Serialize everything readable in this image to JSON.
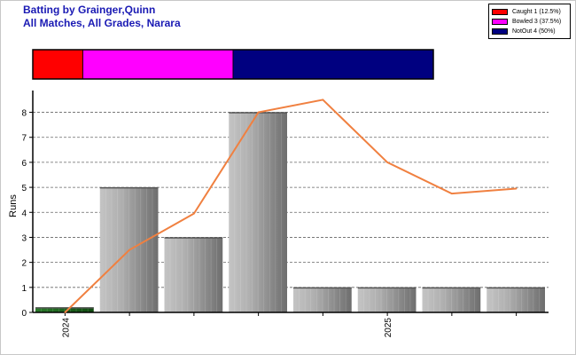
{
  "title": {
    "line1": "Batting by Grainger,Quinn",
    "line2": "All Matches, All Grades, Narara"
  },
  "legend": [
    {
      "label": "Caught 1 (12.5%)",
      "color": "#ff0000"
    },
    {
      "label": "Bowled 3 (37.5%)",
      "color": "#ff00ff"
    },
    {
      "label": "NotOut 4 (50%)",
      "color": "#000080"
    }
  ],
  "chart_data": [
    {
      "type": "bar",
      "name": "dismissal-proportion",
      "segments": [
        {
          "label": "Caught",
          "count": 1,
          "share": 0.125,
          "color": "#ff0000"
        },
        {
          "label": "Bowled",
          "count": 3,
          "share": 0.375,
          "color": "#ff00ff"
        },
        {
          "label": "NotOut",
          "count": 4,
          "share": 0.5,
          "color": "#000080"
        }
      ]
    },
    {
      "type": "bar",
      "ylabel": "Runs",
      "ylim": [
        0,
        8.8
      ],
      "yticks": [
        0,
        1,
        2,
        3,
        4,
        5,
        6,
        7,
        8
      ],
      "grid": true,
      "x_tick_labels": [
        {
          "index": 0,
          "label": "2024"
        },
        {
          "index": 5,
          "label": "2025"
        }
      ],
      "bars": [
        {
          "value": 0.2,
          "color": "#1e6a1e"
        },
        {
          "value": 5,
          "color": "#a8a8a8"
        },
        {
          "value": 3,
          "color": "#a8a8a8"
        },
        {
          "value": 8,
          "color": "#a8a8a8"
        },
        {
          "value": 1,
          "color": "#a8a8a8"
        },
        {
          "value": 1,
          "color": "#a8a8a8"
        },
        {
          "value": 1,
          "color": "#a8a8a8"
        },
        {
          "value": 1,
          "color": "#a8a8a8"
        }
      ],
      "line": {
        "color": "#f08040",
        "values": [
          0,
          2.5,
          3.95,
          8,
          8.5,
          6,
          4.75,
          4.95
        ]
      }
    }
  ]
}
